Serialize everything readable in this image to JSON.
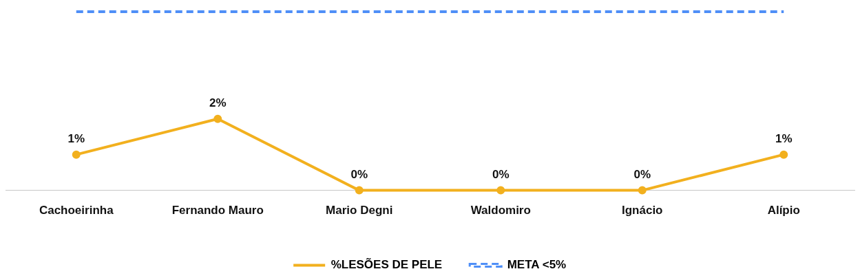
{
  "chart_data": {
    "type": "line",
    "categories": [
      "Cachoeirinha",
      "Fernando Mauro",
      "Mario Degni",
      "Waldomiro",
      "Ignácio",
      "Alípio"
    ],
    "series": [
      {
        "name": "%LESÕES DE PELE",
        "color": "#f2b01e",
        "values": [
          1,
          2,
          0,
          0,
          0,
          1
        ],
        "value_labels": [
          "1%",
          "2%",
          "0%",
          "0%",
          "0%",
          "1%"
        ],
        "marker": "circle",
        "line_style": "solid"
      },
      {
        "name": "META <5%",
        "color": "#4f8ff7",
        "values": [
          5,
          5,
          5,
          5,
          5,
          5
        ],
        "marker": "none",
        "line_style": "dashed"
      }
    ],
    "tick_labels": "x",
    "grid": false,
    "legend": "bottom"
  }
}
